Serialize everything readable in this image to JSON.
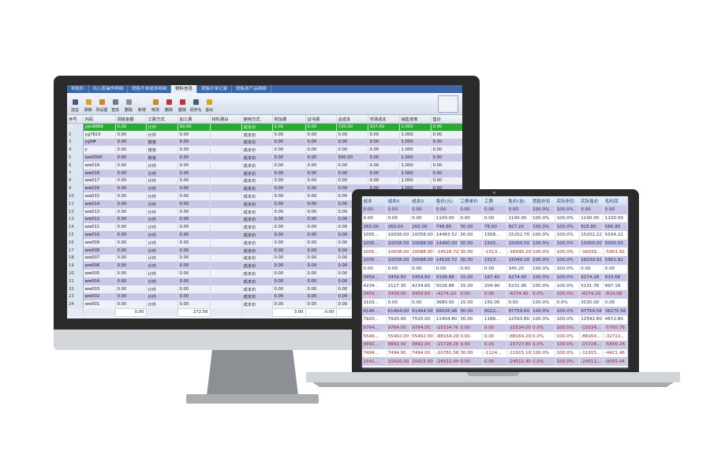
{
  "monitor": {
    "tabs": [
      "导航栏",
      "出入库操作明细",
      "销售开单成本明细",
      "物料信息",
      "销售开单记录",
      "销售单产品明细"
    ],
    "active_tab": 3,
    "toolbar": [
      "加宝",
      "刷新",
      "列设置",
      "查找",
      "删除",
      "新增",
      "修改",
      "删除",
      "删除",
      "另存为",
      "退出"
    ],
    "toolbar_colors": [
      "#4a5b7a",
      "#d8a128",
      "#c9862c",
      "#6c7a94",
      "#8a8f99",
      "#eeeeee",
      "#c98a34",
      "#c9302a",
      "#c9302a",
      "#4a5b7a",
      "#d8a128"
    ],
    "columns": [
      "序号",
      "内码",
      "调拨金额",
      "工费方式",
      "加工费",
      "材料费白",
      "使用方式",
      "附加费",
      "证书费",
      "总成本",
      "市场成本",
      "销售倍率",
      "售价"
    ],
    "rows": [
      [
        "1",
        "yjm8888",
        "0.00",
        "计件",
        "50.00",
        "",
        "成本价",
        "0.00",
        "0.00",
        "720.00",
        "107.40",
        "1.000",
        "0.00"
      ],
      [
        "2",
        "yg7823",
        "0.00",
        "计件",
        "0.00",
        "",
        "成本价",
        "0.00",
        "0.00",
        "0.00",
        "0.00",
        "1.000",
        "0.00"
      ],
      [
        "3",
        "yg9#",
        "0.00",
        "按克",
        "0.00",
        "",
        "成本价",
        "0.00",
        "0.00",
        "0.00",
        "0.00",
        "1.000",
        "0.00"
      ],
      [
        "4",
        "y",
        "0.00",
        "按克",
        "0.00",
        "",
        "成本价",
        "0.00",
        "0.00",
        "0.00",
        "0.00",
        "1.000",
        "0.00"
      ],
      [
        "5",
        "ww0000",
        "0.00",
        "按克",
        "0.00",
        "",
        "成本价",
        "0.00",
        "0.00",
        "500.00",
        "0.00",
        "1.000",
        "0.00"
      ],
      [
        "6",
        "ww019",
        "0.00",
        "计件",
        "0.00",
        "",
        "成本价",
        "0.00",
        "0.00",
        "0.00",
        "0.00",
        "1.000",
        "0.00"
      ],
      [
        "7",
        "ww018",
        "0.00",
        "计件",
        "0.00",
        "",
        "成本价",
        "0.00",
        "0.00",
        "0.00",
        "0.00",
        "1.000",
        "0.00"
      ],
      [
        "8",
        "ww017",
        "0.00",
        "计件",
        "0.00",
        "",
        "成本价",
        "0.00",
        "0.00",
        "0.00",
        "0.00",
        "1.000",
        "0.00"
      ],
      [
        "9",
        "ww016",
        "0.00",
        "计件",
        "0.00",
        "",
        "成本价",
        "0.00",
        "0.00",
        "0.00",
        "0.00",
        "1.000",
        "0.00"
      ],
      [
        "10",
        "ww015",
        "0.00",
        "计件",
        "0.00",
        "",
        "成本价",
        "0.00",
        "0.00",
        "0.00",
        "0.00",
        "1.000",
        "0.00"
      ],
      [
        "11",
        "ww014",
        "0.00",
        "计件",
        "0.00",
        "",
        "成本价",
        "0.00",
        "0.00",
        "0.00",
        "0.00",
        "1.000",
        "0.00"
      ],
      [
        "12",
        "ww013",
        "0.00",
        "计件",
        "0.00",
        "",
        "成本价",
        "0.00",
        "0.00",
        "0.00",
        "0.00",
        "1.000",
        "0.00"
      ],
      [
        "13",
        "ww012",
        "0.00",
        "计件",
        "0.00",
        "",
        "成本价",
        "0.00",
        "0.00",
        "0.00",
        "0.00",
        "1.000",
        "0.00"
      ],
      [
        "14",
        "ww011",
        "0.00",
        "计件",
        "0.00",
        "",
        "成本价",
        "0.00",
        "0.00",
        "0.00",
        "0.00",
        "1.000",
        "0.00"
      ],
      [
        "15",
        "ww010",
        "0.00",
        "计件",
        "0.00",
        "",
        "成本价",
        "0.00",
        "0.00",
        "0.00",
        "0.00",
        "1.000",
        "0.00"
      ],
      [
        "16",
        "ww009",
        "0.00",
        "计件",
        "0.00",
        "",
        "成本价",
        "0.00",
        "0.00",
        "0.00",
        "0.00",
        "1.000",
        "0.00"
      ],
      [
        "17",
        "ww008",
        "0.00",
        "计件",
        "0.00",
        "",
        "成本价",
        "0.00",
        "0.00",
        "0.00",
        "0.00",
        "1.000",
        "0.00"
      ],
      [
        "18",
        "ww007",
        "0.00",
        "计件",
        "0.00",
        "",
        "成本价",
        "0.00",
        "0.00",
        "0.00",
        "0.00",
        "1.000",
        "0.00"
      ],
      [
        "19",
        "ww006",
        "0.00",
        "计件",
        "0.00",
        "",
        "成本价",
        "0.00",
        "0.00",
        "0.00",
        "0.00",
        "1.000",
        "0.00"
      ],
      [
        "20",
        "ww005",
        "0.00",
        "计件",
        "0.00",
        "",
        "成本价",
        "0.00",
        "0.00",
        "0.00",
        "0.00",
        "1.000",
        "0.00"
      ],
      [
        "21",
        "ww004",
        "0.00",
        "计件",
        "0.00",
        "",
        "成本价",
        "0.00",
        "0.00",
        "0.00",
        "0.00",
        "1.000",
        "0.00"
      ],
      [
        "22",
        "ww003",
        "0.00",
        "计件",
        "0.00",
        "",
        "成本价",
        "0.00",
        "0.00",
        "0.00",
        "0.00",
        "1.000",
        "0.00"
      ],
      [
        "23",
        "ww002",
        "0.00",
        "计件",
        "0.00",
        "",
        "成本价",
        "0.00",
        "0.00",
        "0.00",
        "0.00",
        "1.000",
        "0.00"
      ],
      [
        "24",
        "ww001",
        "0.00",
        "计件",
        "0.00",
        "",
        "成本价",
        "0.00",
        "0.00",
        "0.00",
        "0.00",
        "1.000",
        "0.00"
      ]
    ],
    "totals": {
      "col2": "0.00",
      "col4": "272.56",
      "col7": "3.00",
      "col8": "0.00",
      "col9": "80"
    },
    "selected_row_color": "#2fa83a"
  },
  "laptop": {
    "columns": [
      "成本",
      "成本0",
      "成本0.",
      "售价(元)",
      "工费单价",
      "工费",
      "售价(含)",
      "销售折扣",
      "实际折扣",
      "实际售价",
      "毛利润"
    ],
    "rows": [
      [
        "0.00",
        "0.00",
        "0.00",
        "0.00",
        "0.00",
        "0.00",
        "0.00",
        "100.0%",
        "100.0%",
        "0.00",
        "0.00"
      ],
      [
        "0.00",
        "0.00",
        "0.00",
        "1100.00",
        "0.00",
        "0.00",
        "1100.00",
        "100.0%",
        "100.0%",
        "1100.00",
        "1100.00"
      ],
      [
        "260.00",
        "260.00",
        "260.00",
        "748.80",
        "30.00",
        "78.00",
        "827.20",
        "100.0%",
        "100.0%",
        "825.80",
        "566.80"
      ],
      [
        "1005...",
        "10038.00",
        "10058.00",
        "14483.52",
        "30.00",
        "1508...",
        "15202.70",
        "100.0%",
        "100.0%",
        "15202.22",
        "5034.22"
      ],
      [
        "1005...",
        "10038.00",
        "10088.00",
        "14460.00",
        "30.00",
        "1500...",
        "15000.00",
        "100.0%",
        "100.0%",
        "15000.00",
        "5000.00"
      ],
      [
        "1005...",
        "10038.00",
        "10088.00",
        "-14526.72",
        "30.00",
        "-1513...",
        "-16040.20",
        "100.0%",
        "100.0%",
        "-16039...",
        "-5951.92"
      ],
      [
        "1005...",
        "10038.00",
        "10088.00",
        "14526.72",
        "30.00",
        "1513...",
        "15040.20",
        "100.0%",
        "100.0%",
        "16039.92",
        "5951.92"
      ],
      [
        "0.00",
        "0.00",
        "0.00",
        "0.00",
        "0.00",
        "0.00",
        "345.20",
        "100.0%",
        "100.0%",
        "0.00",
        "0.00"
      ],
      [
        "3459...",
        "3459.60",
        "3459.60",
        "4106.88",
        "15.00",
        "167.40",
        "4274.40",
        "100.0%",
        "100.0%",
        "4274.28",
        "814.68"
      ],
      [
        "4234...",
        "2117.30",
        "4234.60",
        "5026.88",
        "15.00",
        "204.90",
        "5231.90",
        "100.0%",
        "100.0%",
        "5231.78",
        "997.18"
      ],
      [
        "3459...",
        "3459.00",
        "3459.60",
        "-4274.20",
        "0.00",
        "0.00",
        "-4274.40",
        "0.0%",
        "100.0%",
        "-4274.20",
        "-814.08"
      ],
      [
        "3103...",
        "0.00",
        "0.00",
        "3680.00",
        "15.00",
        "150.00",
        "0.00",
        "100.0%",
        "0.0%",
        "3530.00",
        "0.00"
      ],
      [
        "6146...",
        "61464.00",
        "61464.00",
        "89526.96",
        "30.00",
        "9022...",
        "97759.60",
        "100.0%",
        "100.0%",
        "97759.56",
        "36275.56"
      ],
      [
        "7920...",
        "7920.00",
        "7520.00",
        "11404.80",
        "30.00",
        "1188...",
        "12593.80",
        "100.0%",
        "100.0%",
        "12592.80",
        "4672.80"
      ],
      [
        "9764...",
        "9764.00",
        "9764.00",
        "-15534.76",
        "0.00",
        "0.00",
        "-15534.00",
        "0.0%",
        "100.0%",
        "-15534...",
        "-5760.76"
      ],
      [
        "5546...",
        "55462.00",
        "55462.00",
        "-88164.20",
        "0.00",
        "0.00",
        "-88164.20",
        "0.0%",
        "100.0%",
        "-88164...",
        "-32722..."
      ],
      [
        "9892...",
        "9892.00",
        "9892.00",
        "-15728.28",
        "0.00",
        "0.00",
        "-15727.80",
        "0.0%",
        "100.0%",
        "-15728...",
        "-5836.28"
      ],
      [
        "7494...",
        "7494.00",
        "7494.00",
        "-10781.56",
        "30.00",
        "-1124...",
        "-11915.10",
        "100.0%",
        "100.0%",
        "-11915...",
        "-4421.46"
      ],
      [
        "1541...",
        "15416.00",
        "15415.00",
        "-24511.44",
        "0.00",
        "0.00",
        "-24511.40",
        "0.0%",
        "100.0%",
        "-24511...",
        "-9055.44"
      ]
    ],
    "red_rows": [
      5,
      10,
      14,
      15,
      16,
      17,
      18
    ],
    "negative_color": "#a3281f",
    "row_alt_color": "#c9c7e5"
  }
}
